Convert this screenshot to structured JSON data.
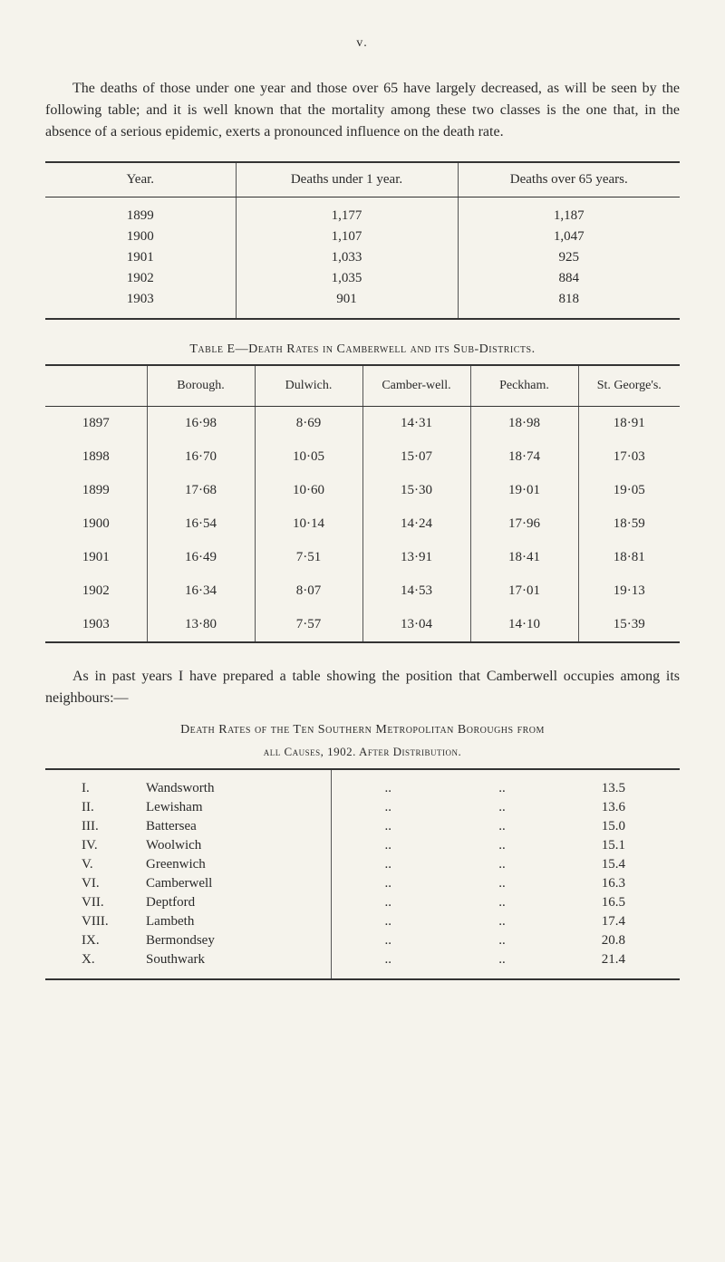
{
  "page_marker": "v.",
  "paragraph1": "The deaths of those under one year and those over 65 have largely decreased, as will be seen by the following table; and it is well known that the mortality among these two classes is the one that, in the absence of a serious epidemic, exerts a pronounced influence on the death rate.",
  "table1": {
    "type": "table",
    "headers": [
      "Year.",
      "Deaths under 1 year.",
      "Deaths over 65 years."
    ],
    "rows": [
      [
        "1899",
        "1,177",
        "1,187"
      ],
      [
        "1900",
        "1,107",
        "1,047"
      ],
      [
        "1901",
        "1,033",
        "925"
      ],
      [
        "1902",
        "1,035",
        "884"
      ],
      [
        "1903",
        "901",
        "818"
      ]
    ]
  },
  "table2_caption": "Table E—Death Rates in Camberwell and its Sub-Districts.",
  "table2": {
    "type": "table",
    "headers": [
      "",
      "Borough.",
      "Dulwich.",
      "Camber-well.",
      "Peckham.",
      "St. George's."
    ],
    "rows": [
      [
        "1897",
        "16·98",
        "8·69",
        "14·31",
        "18·98",
        "18·91"
      ],
      [
        "1898",
        "16·70",
        "10·05",
        "15·07",
        "18·74",
        "17·03"
      ],
      [
        "1899",
        "17·68",
        "10·60",
        "15·30",
        "19·01",
        "19·05"
      ],
      [
        "1900",
        "16·54",
        "10·14",
        "14·24",
        "17·96",
        "18·59"
      ],
      [
        "1901",
        "16·49",
        "7·51",
        "13·91",
        "18·41",
        "18·81"
      ],
      [
        "1902",
        "16·34",
        "8·07",
        "14·53",
        "17·01",
        "19·13"
      ],
      [
        "1903",
        "13·80",
        "7·57",
        "13·04",
        "14·10",
        "15·39"
      ]
    ]
  },
  "paragraph2": "As in past years I have prepared a table showing the position that Camberwell occupies among its neighbours:—",
  "table3_caption1": "Death Rates of the Ten Southern Metropolitan Boroughs from",
  "table3_caption2": "all Causes, 1902.  After Distribution.",
  "table3": {
    "type": "table",
    "rows": [
      [
        "I.",
        "Wandsworth",
        "..",
        "..",
        "13.5"
      ],
      [
        "II.",
        "Lewisham",
        "..",
        "..",
        "13.6"
      ],
      [
        "III.",
        "Battersea",
        "..",
        "..",
        "15.0"
      ],
      [
        "IV.",
        "Woolwich",
        "..",
        "..",
        "15.1"
      ],
      [
        "V.",
        "Greenwich",
        "..",
        "..",
        "15.4"
      ],
      [
        "VI.",
        "Camberwell",
        "..",
        "..",
        "16.3"
      ],
      [
        "VII.",
        "Deptford",
        "..",
        "..",
        "16.5"
      ],
      [
        "VIII.",
        "Lambeth",
        "..",
        "..",
        "17.4"
      ],
      [
        "IX.",
        "Bermondsey",
        "..",
        "..",
        "20.8"
      ],
      [
        "X.",
        "Southwark",
        "..",
        "..",
        "21.4"
      ]
    ]
  },
  "colors": {
    "background": "#f5f3ec",
    "text": "#2a2a2a",
    "rule": "#333333"
  }
}
